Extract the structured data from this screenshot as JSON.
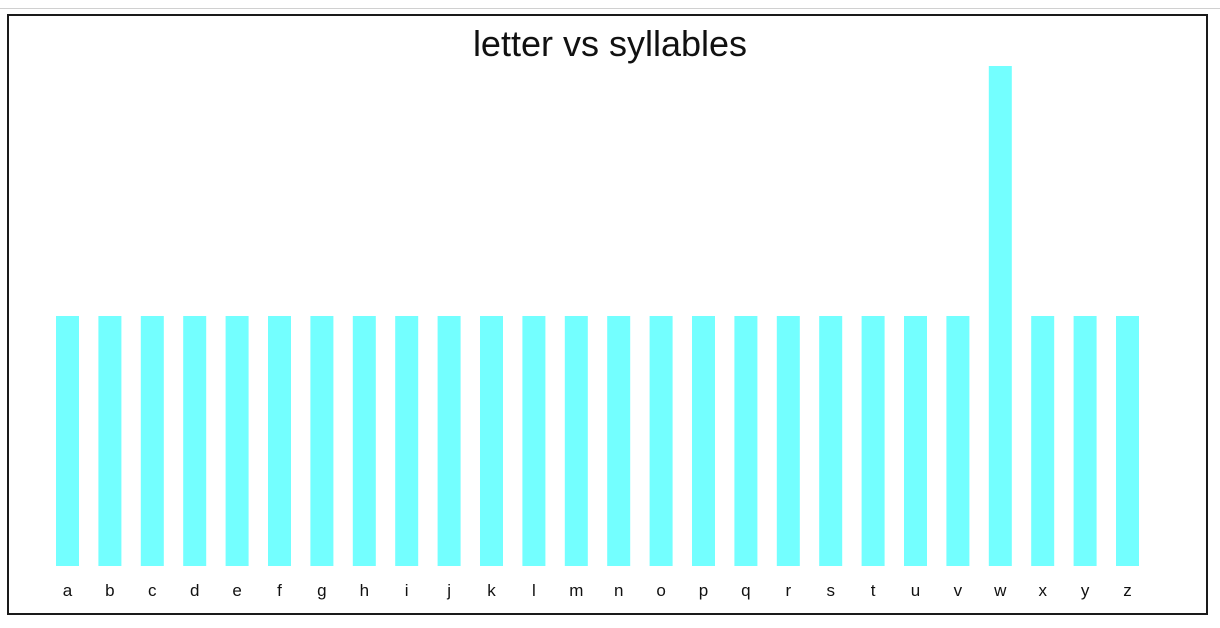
{
  "chart_data": {
    "type": "bar",
    "title": "letter vs syllables",
    "categories": [
      "a",
      "b",
      "c",
      "d",
      "e",
      "f",
      "g",
      "h",
      "i",
      "j",
      "k",
      "l",
      "m",
      "n",
      "o",
      "p",
      "q",
      "r",
      "s",
      "t",
      "u",
      "v",
      "w",
      "x",
      "y",
      "z"
    ],
    "values": [
      1,
      1,
      1,
      1,
      1,
      1,
      1,
      1,
      1,
      1,
      1,
      1,
      1,
      1,
      1,
      1,
      1,
      1,
      1,
      1,
      1,
      1,
      2,
      1,
      1,
      1
    ],
    "xlabel": "",
    "ylabel": "",
    "ylim": [
      0,
      2
    ],
    "grid": false,
    "colors": {
      "bar": "#73ffff"
    }
  }
}
